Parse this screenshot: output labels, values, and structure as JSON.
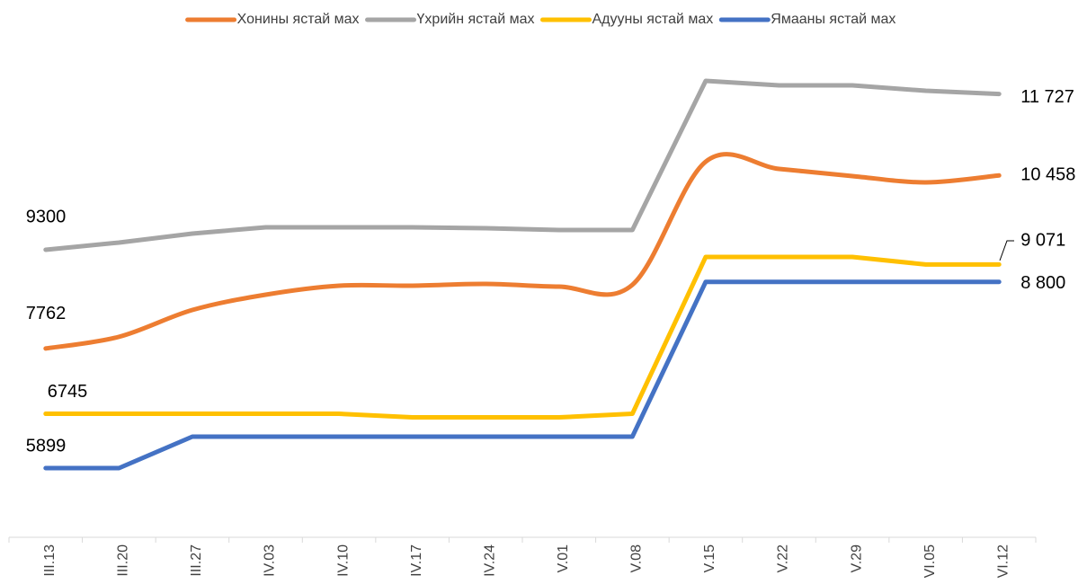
{
  "chart_data": {
    "type": "line",
    "categories": [
      "III.13",
      "III.20",
      "III.27",
      "IV.03",
      "IV.10",
      "IV.17",
      "IV.24",
      "V.01",
      "V.08",
      "V.15",
      "V.22",
      "V.29",
      "VI.05",
      "VI.12"
    ],
    "series": [
      {
        "name": "Хонины ястай мах",
        "color": "#ED7D31",
        "smooth": true,
        "values": [
          7762,
          7944,
          8362,
          8600,
          8740,
          8740,
          8768,
          8726,
          8754,
          10672,
          10560,
          10448,
          10350,
          10458
        ],
        "value_labels": [
          "7762",
          null,
          null,
          null,
          null,
          null,
          null,
          null,
          null,
          null,
          null,
          null,
          null,
          "10 458"
        ]
      },
      {
        "name": "Үхрийн ястай мах",
        "color": "#A5A5A5",
        "values": [
          9300,
          9412,
          9552,
          9650,
          9650,
          9650,
          9636,
          9608,
          9608,
          11931,
          11861,
          11861,
          11777,
          11727
        ],
        "value_labels": [
          "9300",
          null,
          null,
          null,
          null,
          null,
          null,
          null,
          null,
          null,
          null,
          null,
          null,
          "11 727"
        ]
      },
      {
        "name": "Адууны ястай мах",
        "color": "#FFC000",
        "values": [
          6745,
          6745,
          6745,
          6745,
          6745,
          6689,
          6689,
          6689,
          6745,
          9188,
          9188,
          9188,
          9071,
          9071
        ],
        "value_labels": [
          "6745",
          null,
          null,
          null,
          null,
          null,
          null,
          null,
          null,
          null,
          null,
          null,
          null,
          "9 071"
        ]
      },
      {
        "name": "Ямааны ястай мах",
        "color": "#4472C4",
        "values": [
          5899,
          5899,
          6389,
          6389,
          6389,
          6389,
          6389,
          6389,
          6389,
          8800,
          8800,
          8800,
          8800,
          8800
        ],
        "value_labels": [
          "5899",
          null,
          null,
          null,
          null,
          null,
          null,
          null,
          null,
          null,
          null,
          null,
          null,
          "8 800"
        ]
      }
    ]
  }
}
